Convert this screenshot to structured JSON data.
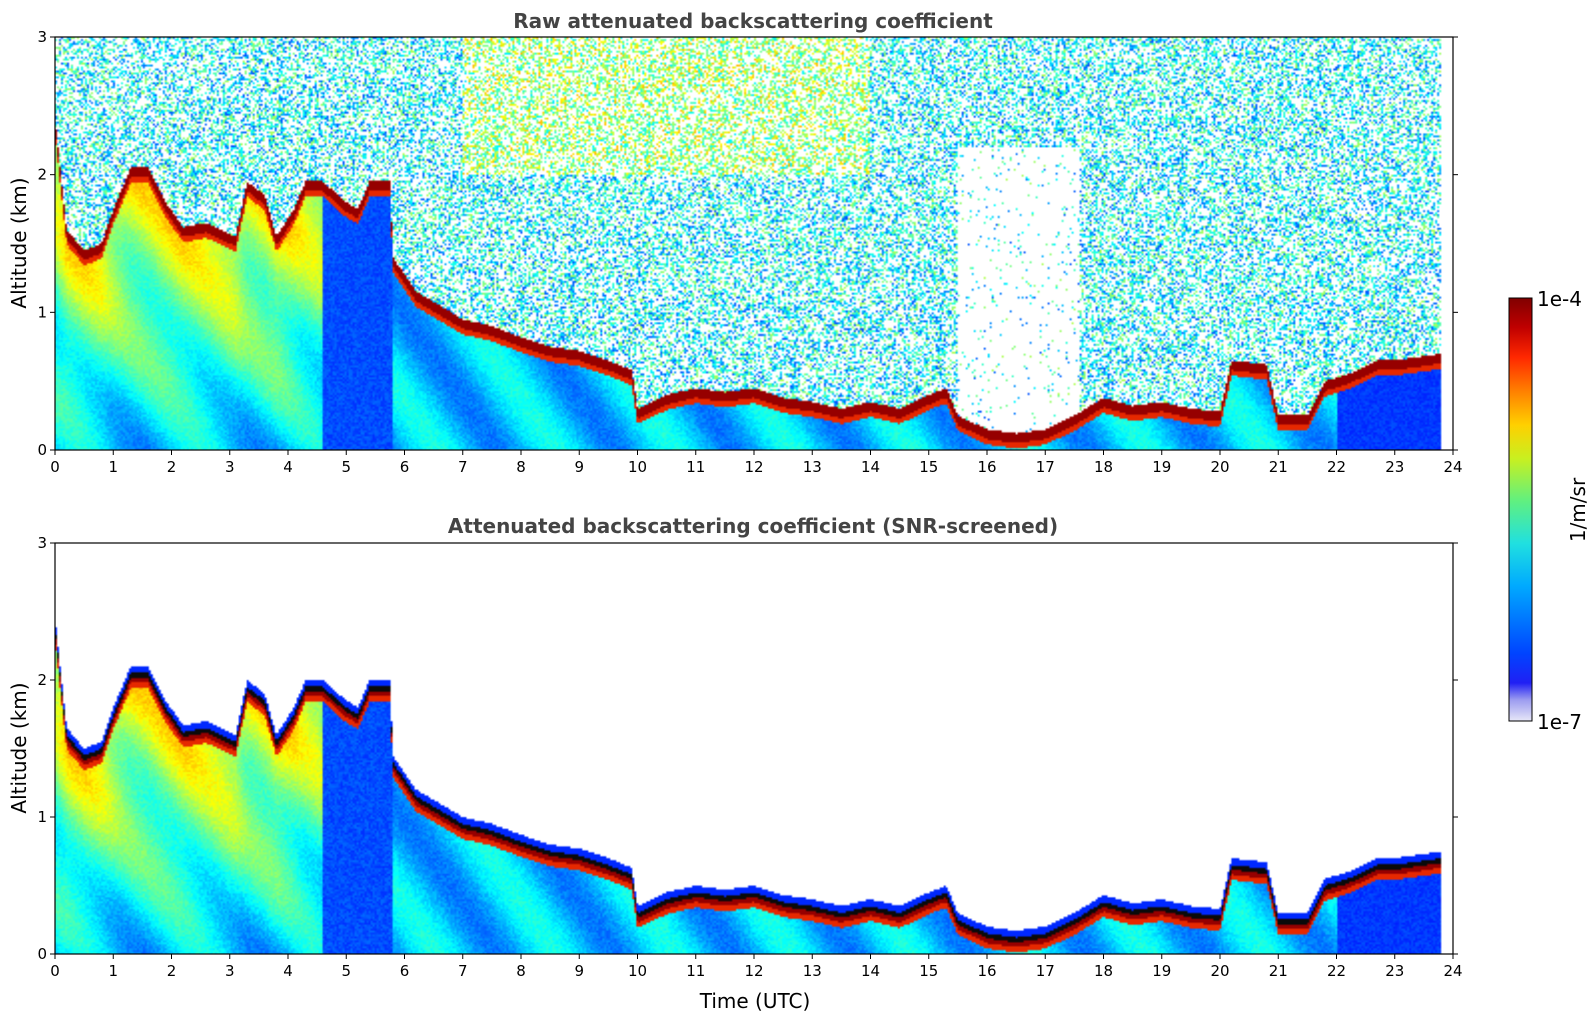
{
  "chart_data": [
    {
      "type": "heatmap",
      "title": "Raw attenuated backscattering coefficient",
      "xlabel": "",
      "ylabel": "Altitude (km)",
      "xlim": [
        0,
        24
      ],
      "ylim": [
        0,
        3
      ],
      "xticks": [
        "0",
        "1",
        "2",
        "3",
        "4",
        "5",
        "6",
        "7",
        "8",
        "9",
        "10",
        "11",
        "12",
        "13",
        "14",
        "15",
        "16",
        "17",
        "18",
        "19",
        "20",
        "21",
        "22",
        "23",
        "24"
      ],
      "yticks": [
        "0",
        "1",
        "2",
        "3"
      ],
      "screened": false,
      "noise_above_layer": true,
      "cloud_top_km": [
        [
          0.0,
          2.4
        ],
        [
          0.2,
          1.6
        ],
        [
          0.5,
          1.45
        ],
        [
          0.8,
          1.5
        ],
        [
          1.0,
          1.75
        ],
        [
          1.3,
          2.05
        ],
        [
          1.6,
          2.05
        ],
        [
          1.9,
          1.8
        ],
        [
          2.2,
          1.62
        ],
        [
          2.6,
          1.65
        ],
        [
          3.1,
          1.55
        ],
        [
          3.3,
          1.95
        ],
        [
          3.6,
          1.85
        ],
        [
          3.8,
          1.55
        ],
        [
          4.1,
          1.75
        ],
        [
          4.3,
          1.95
        ],
        [
          4.6,
          1.95
        ],
        [
          5.0,
          1.8
        ],
        [
          5.2,
          1.75
        ],
        [
          5.4,
          1.95
        ],
        [
          5.75,
          1.95
        ],
        [
          5.8,
          1.4
        ],
        [
          6.2,
          1.15
        ],
        [
          6.6,
          1.05
        ],
        [
          7.0,
          0.95
        ],
        [
          7.5,
          0.9
        ],
        [
          8.0,
          0.82
        ],
        [
          8.5,
          0.75
        ],
        [
          9.0,
          0.72
        ],
        [
          9.5,
          0.65
        ],
        [
          9.9,
          0.58
        ],
        [
          10.0,
          0.3
        ],
        [
          10.5,
          0.4
        ],
        [
          11.0,
          0.45
        ],
        [
          11.5,
          0.42
        ],
        [
          12.0,
          0.45
        ],
        [
          12.5,
          0.38
        ],
        [
          13.0,
          0.35
        ],
        [
          13.5,
          0.3
        ],
        [
          14.0,
          0.35
        ],
        [
          14.5,
          0.3
        ],
        [
          15.0,
          0.4
        ],
        [
          15.3,
          0.45
        ],
        [
          15.5,
          0.25
        ],
        [
          16.0,
          0.15
        ],
        [
          16.5,
          0.12
        ],
        [
          17.0,
          0.15
        ],
        [
          17.5,
          0.25
        ],
        [
          18.0,
          0.38
        ],
        [
          18.5,
          0.32
        ],
        [
          19.0,
          0.35
        ],
        [
          19.5,
          0.3
        ],
        [
          20.0,
          0.28
        ],
        [
          20.2,
          0.65
        ],
        [
          20.8,
          0.62
        ],
        [
          21.0,
          0.25
        ],
        [
          21.5,
          0.25
        ],
        [
          21.8,
          0.5
        ],
        [
          22.2,
          0.55
        ],
        [
          22.7,
          0.65
        ],
        [
          23.0,
          0.65
        ],
        [
          23.8,
          0.7
        ]
      ],
      "colorbar": {
        "min_label": "1e-7",
        "max_label": "1e-4",
        "label": "1/m/sr",
        "scale": "log"
      }
    },
    {
      "type": "heatmap",
      "title": "Attenuated backscattering coefficient (SNR-screened)",
      "xlabel": "Time (UTC)",
      "ylabel": "Altitude (km)",
      "xlim": [
        0,
        24
      ],
      "ylim": [
        0,
        3
      ],
      "xticks": [
        "0",
        "1",
        "2",
        "3",
        "4",
        "5",
        "6",
        "7",
        "8",
        "9",
        "10",
        "11",
        "12",
        "13",
        "14",
        "15",
        "16",
        "17",
        "18",
        "19",
        "20",
        "21",
        "22",
        "23",
        "24"
      ],
      "yticks": [
        "0",
        "1",
        "2",
        "3"
      ],
      "screened": true,
      "noise_above_layer": false,
      "cloud_top_km": [
        [
          0.0,
          2.4
        ],
        [
          0.2,
          1.6
        ],
        [
          0.5,
          1.45
        ],
        [
          0.8,
          1.5
        ],
        [
          1.0,
          1.75
        ],
        [
          1.3,
          2.05
        ],
        [
          1.6,
          2.05
        ],
        [
          1.9,
          1.8
        ],
        [
          2.2,
          1.62
        ],
        [
          2.6,
          1.65
        ],
        [
          3.1,
          1.55
        ],
        [
          3.3,
          1.95
        ],
        [
          3.6,
          1.85
        ],
        [
          3.8,
          1.55
        ],
        [
          4.1,
          1.75
        ],
        [
          4.3,
          1.95
        ],
        [
          4.6,
          1.95
        ],
        [
          5.0,
          1.8
        ],
        [
          5.2,
          1.75
        ],
        [
          5.4,
          1.95
        ],
        [
          5.75,
          1.95
        ],
        [
          5.8,
          1.4
        ],
        [
          6.2,
          1.15
        ],
        [
          6.6,
          1.05
        ],
        [
          7.0,
          0.95
        ],
        [
          7.5,
          0.9
        ],
        [
          8.0,
          0.82
        ],
        [
          8.5,
          0.75
        ],
        [
          9.0,
          0.72
        ],
        [
          9.5,
          0.65
        ],
        [
          9.9,
          0.58
        ],
        [
          10.0,
          0.3
        ],
        [
          10.5,
          0.4
        ],
        [
          11.0,
          0.45
        ],
        [
          11.5,
          0.42
        ],
        [
          12.0,
          0.45
        ],
        [
          12.5,
          0.38
        ],
        [
          13.0,
          0.35
        ],
        [
          13.5,
          0.3
        ],
        [
          14.0,
          0.35
        ],
        [
          14.5,
          0.3
        ],
        [
          15.0,
          0.4
        ],
        [
          15.3,
          0.45
        ],
        [
          15.5,
          0.25
        ],
        [
          16.0,
          0.15
        ],
        [
          16.5,
          0.12
        ],
        [
          17.0,
          0.15
        ],
        [
          17.5,
          0.25
        ],
        [
          18.0,
          0.38
        ],
        [
          18.5,
          0.32
        ],
        [
          19.0,
          0.35
        ],
        [
          19.5,
          0.3
        ],
        [
          20.0,
          0.28
        ],
        [
          20.2,
          0.65
        ],
        [
          20.8,
          0.62
        ],
        [
          21.0,
          0.25
        ],
        [
          21.5,
          0.25
        ],
        [
          21.8,
          0.5
        ],
        [
          22.2,
          0.55
        ],
        [
          22.7,
          0.65
        ],
        [
          23.0,
          0.65
        ],
        [
          23.8,
          0.7
        ]
      ],
      "colorbar": {
        "min_label": "1e-7",
        "max_label": "1e-4",
        "label": "1/m/sr",
        "scale": "log"
      }
    }
  ]
}
